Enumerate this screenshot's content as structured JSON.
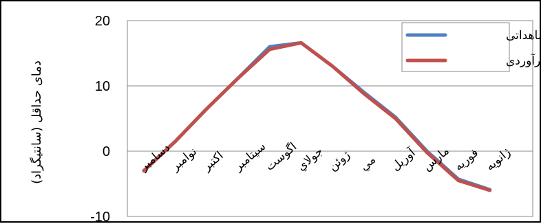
{
  "chart_data": {
    "type": "line",
    "ylabel": "دمای حداقل (سانتیگراد)",
    "xlabel": "",
    "ylim": [
      -10,
      20
    ],
    "yticks": [
      -10,
      0,
      10,
      20
    ],
    "grid": true,
    "legend_position": "top-right",
    "categories": [
      "دسامبر",
      "نوامبر",
      "اكتبر",
      "سپتامبر",
      "اگوست",
      "جولاي",
      "ژوئن",
      "مي",
      "آوريل",
      "مارس",
      "فوريه",
      "ژانويه"
    ],
    "series": [
      {
        "name": "مشاهداتی",
        "color": "#4f81bd",
        "values": [
          -3.0,
          1.5,
          6.5,
          11.2,
          16.0,
          16.6,
          13.0,
          9.0,
          5.2,
          0.0,
          -4.3,
          -5.9
        ]
      },
      {
        "name": "برآوردی",
        "color": "#c0504d",
        "values": [
          -3.0,
          1.5,
          6.5,
          11.2,
          15.6,
          16.6,
          13.0,
          8.8,
          5.0,
          -0.2,
          -4.5,
          -6.0
        ]
      }
    ]
  }
}
